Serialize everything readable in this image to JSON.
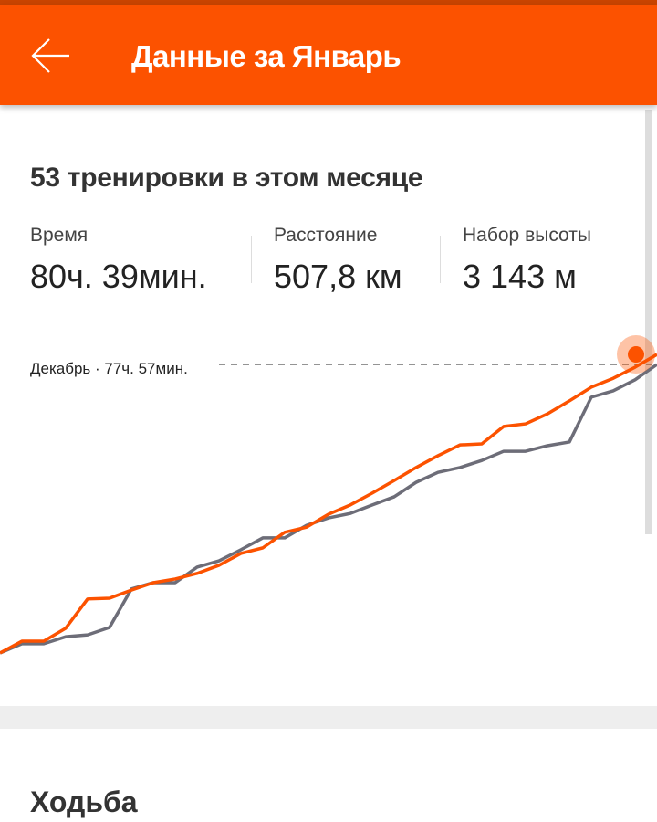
{
  "header": {
    "title": "Данные за Январь",
    "back_icon": "arrow-left-icon"
  },
  "summary": {
    "title": "53 тренировки в этом месяце",
    "stats": [
      {
        "label": "Время",
        "value": "80ч. 39мин."
      },
      {
        "label": "Расстояние",
        "value": "507,8 км"
      },
      {
        "label": "Набор высоты",
        "value": "3 143 м"
      }
    ]
  },
  "colors": {
    "accent": "#fc5200",
    "previous": "#6d6d78"
  },
  "chart_data": {
    "type": "line",
    "reference_label": "Декабрь · 77ч. 57мин.",
    "reference_value": 77.95,
    "x": [
      0,
      1,
      2,
      3,
      4,
      5,
      6,
      7,
      8,
      9,
      10,
      11,
      12,
      13,
      14,
      15,
      16,
      17,
      18,
      19,
      20,
      21,
      22,
      23,
      24,
      25,
      26,
      27,
      28,
      29,
      30
    ],
    "series": [
      {
        "id": "current",
        "color": "#fc5200",
        "values": [
          0,
          3.2,
          3.2,
          6.7,
          14.6,
          14.8,
          17.0,
          19.0,
          20.0,
          21.5,
          23.7,
          26.9,
          28.4,
          32.6,
          34.0,
          37.5,
          40.0,
          43.2,
          46.6,
          50.1,
          53.3,
          56.2,
          56.5,
          61.2,
          61.9,
          64.6,
          68.1,
          71.8,
          74.2,
          77.2,
          80.65
        ]
      },
      {
        "id": "previous",
        "color": "#6d6d78",
        "values": [
          0,
          2.5,
          2.5,
          4.4,
          4.9,
          6.9,
          17.3,
          19.0,
          19.0,
          23.2,
          24.9,
          27.9,
          31.1,
          31.1,
          34.5,
          36.5,
          37.7,
          40.0,
          42.2,
          46.1,
          48.8,
          50.1,
          52.0,
          54.5,
          54.5,
          56.0,
          57.0,
          69.1,
          70.8,
          73.8,
          77.95
        ]
      }
    ],
    "grid": false
  },
  "next_section": {
    "title": "Ходьба"
  }
}
